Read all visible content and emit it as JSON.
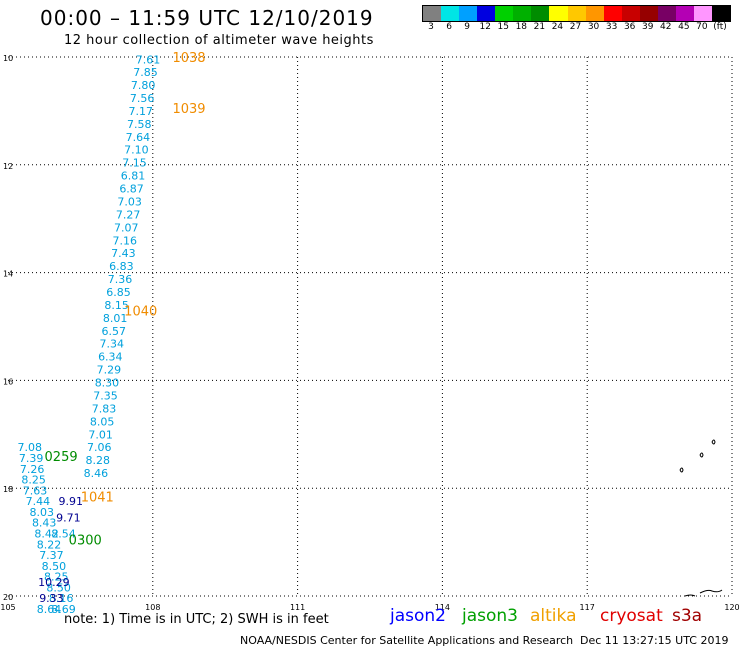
{
  "header": {
    "title": "00:00 – 11:59 UTC 12/10/2019",
    "subtitle": "12 hour collection of altimeter wave heights"
  },
  "colorbar": {
    "colors": [
      "#808080",
      "#00e5e5",
      "#00a0ff",
      "#0000e0",
      "#00d000",
      "#00b000",
      "#008c00",
      "#ffff00",
      "#ffc800",
      "#ff9600",
      "#ff0000",
      "#c80000",
      "#960000",
      "#780064",
      "#b400b4",
      "#ff96ff",
      "#000000"
    ],
    "labels": [
      "3",
      "6",
      "9",
      "12",
      "15",
      "18",
      "21",
      "24",
      "27",
      "30",
      "33",
      "36",
      "39",
      "42",
      "45",
      "70",
      "(ft)"
    ]
  },
  "axes": {
    "lat_labels": [
      "10",
      "12",
      "14",
      "16",
      "18",
      "20"
    ],
    "lon_labels": [
      "105",
      "108",
      "111",
      "114",
      "117",
      "120"
    ]
  },
  "observations": [
    {
      "v": "7.61",
      "lon": 107.9,
      "lat": 10.05,
      "c": "#00a0dc"
    },
    {
      "v": "7.85",
      "lon": 107.85,
      "lat": 10.28,
      "c": "#00a0dc"
    },
    {
      "v": "7.80",
      "lon": 107.8,
      "lat": 10.52,
      "c": "#00a0dc"
    },
    {
      "v": "7.56",
      "lon": 107.78,
      "lat": 10.76,
      "c": "#00a0dc"
    },
    {
      "v": "7.17",
      "lon": 107.75,
      "lat": 11.0,
      "c": "#00a0dc"
    },
    {
      "v": "7.58",
      "lon": 107.72,
      "lat": 11.24,
      "c": "#00a0dc"
    },
    {
      "v": "7.64",
      "lon": 107.69,
      "lat": 11.48,
      "c": "#00a0dc"
    },
    {
      "v": "7.10",
      "lon": 107.66,
      "lat": 11.72,
      "c": "#00a0dc"
    },
    {
      "v": "7.15",
      "lon": 107.62,
      "lat": 11.96,
      "c": "#00a0dc"
    },
    {
      "v": "6.81",
      "lon": 107.59,
      "lat": 12.2,
      "c": "#00a0dc"
    },
    {
      "v": "6.87",
      "lon": 107.56,
      "lat": 12.44,
      "c": "#00a0dc"
    },
    {
      "v": "7.03",
      "lon": 107.52,
      "lat": 12.68,
      "c": "#00a0dc"
    },
    {
      "v": "7.27",
      "lon": 107.49,
      "lat": 12.92,
      "c": "#00a0dc"
    },
    {
      "v": "7.07",
      "lon": 107.45,
      "lat": 13.16,
      "c": "#00a0dc"
    },
    {
      "v": "7.16",
      "lon": 107.42,
      "lat": 13.4,
      "c": "#00a0dc"
    },
    {
      "v": "7.43",
      "lon": 107.39,
      "lat": 13.64,
      "c": "#00a0dc"
    },
    {
      "v": "6.83",
      "lon": 107.35,
      "lat": 13.88,
      "c": "#00a0dc"
    },
    {
      "v": "7.36",
      "lon": 107.32,
      "lat": 14.12,
      "c": "#00a0dc"
    },
    {
      "v": "6.85",
      "lon": 107.29,
      "lat": 14.36,
      "c": "#00a0dc"
    },
    {
      "v": "8.15",
      "lon": 107.25,
      "lat": 14.6,
      "c": "#00a0dc"
    },
    {
      "v": "8.01",
      "lon": 107.22,
      "lat": 14.84,
      "c": "#00a0dc"
    },
    {
      "v": "6.57",
      "lon": 107.19,
      "lat": 15.08,
      "c": "#00a0dc"
    },
    {
      "v": "7.34",
      "lon": 107.15,
      "lat": 15.32,
      "c": "#00a0dc"
    },
    {
      "v": "6.34",
      "lon": 107.12,
      "lat": 15.56,
      "c": "#00a0dc"
    },
    {
      "v": "7.29",
      "lon": 107.09,
      "lat": 15.8,
      "c": "#00a0dc"
    },
    {
      "v": "8.30",
      "lon": 107.05,
      "lat": 16.04,
      "c": "#00a0dc"
    },
    {
      "v": "7.35",
      "lon": 107.02,
      "lat": 16.28,
      "c": "#00a0dc"
    },
    {
      "v": "7.83",
      "lon": 106.99,
      "lat": 16.52,
      "c": "#00a0dc"
    },
    {
      "v": "8.05",
      "lon": 106.95,
      "lat": 16.76,
      "c": "#00a0dc"
    },
    {
      "v": "7.01",
      "lon": 106.92,
      "lat": 17.0,
      "c": "#00a0dc"
    },
    {
      "v": "7.06",
      "lon": 106.89,
      "lat": 17.24,
      "c": "#00a0dc"
    },
    {
      "v": "8.28",
      "lon": 106.86,
      "lat": 17.48,
      "c": "#00a0dc"
    },
    {
      "v": "8.46",
      "lon": 106.82,
      "lat": 17.72,
      "c": "#00a0dc"
    },
    {
      "v": "7.08",
      "lon": 105.45,
      "lat": 17.24,
      "c": "#00a0dc"
    },
    {
      "v": "7.39",
      "lon": 105.48,
      "lat": 17.44,
      "c": "#00a0dc"
    },
    {
      "v": "7.26",
      "lon": 105.5,
      "lat": 17.64,
      "c": "#00a0dc"
    },
    {
      "v": "8.25",
      "lon": 105.53,
      "lat": 17.84,
      "c": "#00a0dc"
    },
    {
      "v": "7.63",
      "lon": 105.56,
      "lat": 18.04,
      "c": "#00a0dc"
    },
    {
      "v": "7.44",
      "lon": 105.62,
      "lat": 18.24,
      "c": "#00a0dc"
    },
    {
      "v": "8.03",
      "lon": 105.7,
      "lat": 18.44,
      "c": "#00a0dc"
    },
    {
      "v": "8.43",
      "lon": 105.75,
      "lat": 18.64,
      "c": "#00a0dc"
    },
    {
      "v": "8.42",
      "lon": 105.8,
      "lat": 18.84,
      "c": "#00a0dc"
    },
    {
      "v": "8.22",
      "lon": 105.85,
      "lat": 19.04,
      "c": "#00a0dc"
    },
    {
      "v": "7.37",
      "lon": 105.9,
      "lat": 19.24,
      "c": "#00a0dc"
    },
    {
      "v": "8.50",
      "lon": 105.95,
      "lat": 19.44,
      "c": "#00a0dc"
    },
    {
      "v": "8.25",
      "lon": 106.0,
      "lat": 19.64,
      "c": "#00a0dc"
    },
    {
      "v": "8.50",
      "lon": 106.05,
      "lat": 19.84,
      "c": "#00a0dc"
    },
    {
      "v": "8.16",
      "lon": 106.1,
      "lat": 20.04,
      "c": "#00a0dc"
    },
    {
      "v": "8.69",
      "lon": 106.15,
      "lat": 20.24,
      "c": "#00a0dc"
    },
    {
      "v": "8.64",
      "lon": 105.85,
      "lat": 20.24,
      "c": "#00a0dc"
    },
    {
      "v": "9.91",
      "lon": 106.3,
      "lat": 18.24,
      "c": "#000090"
    },
    {
      "v": "9.71",
      "lon": 106.25,
      "lat": 18.54,
      "c": "#000090"
    },
    {
      "v": "8.54",
      "lon": 106.15,
      "lat": 18.84,
      "c": "#00a0dc"
    },
    {
      "v": "10.29",
      "lon": 105.95,
      "lat": 19.74,
      "c": "#000090"
    },
    {
      "v": "9.33",
      "lon": 105.9,
      "lat": 20.04,
      "c": "#000090"
    }
  ],
  "passes": [
    {
      "label": "1038",
      "lon": 108.75,
      "lat": 10.0,
      "c": "#f08c00"
    },
    {
      "label": "1039",
      "lon": 108.75,
      "lat": 10.95,
      "c": "#f08c00"
    },
    {
      "label": "1040",
      "lon": 107.75,
      "lat": 14.7,
      "c": "#f08c00"
    },
    {
      "label": "1041",
      "lon": 106.85,
      "lat": 18.15,
      "c": "#f08c00"
    },
    {
      "label": "0259",
      "lon": 106.1,
      "lat": 17.4,
      "c": "#008c00"
    },
    {
      "label": "0300",
      "lon": 106.6,
      "lat": 18.95,
      "c": "#008c00"
    }
  ],
  "note": "note: 1) Time is in UTC; 2) SWH is in feet",
  "satellites": [
    {
      "name": "jason2",
      "c": "#0000ff"
    },
    {
      "name": "jason3",
      "c": "#00a000"
    },
    {
      "name": "altika",
      "c": "#f0a000"
    },
    {
      "name": "cryosat",
      "c": "#e00000"
    },
    {
      "name": "s3a",
      "c": "#a00000"
    }
  ],
  "footer": {
    "credit": "NOAA/NESDIS Center for Satellite Applications and Research",
    "stamp": "Dec 11 13:27:15 UTC 2019"
  }
}
